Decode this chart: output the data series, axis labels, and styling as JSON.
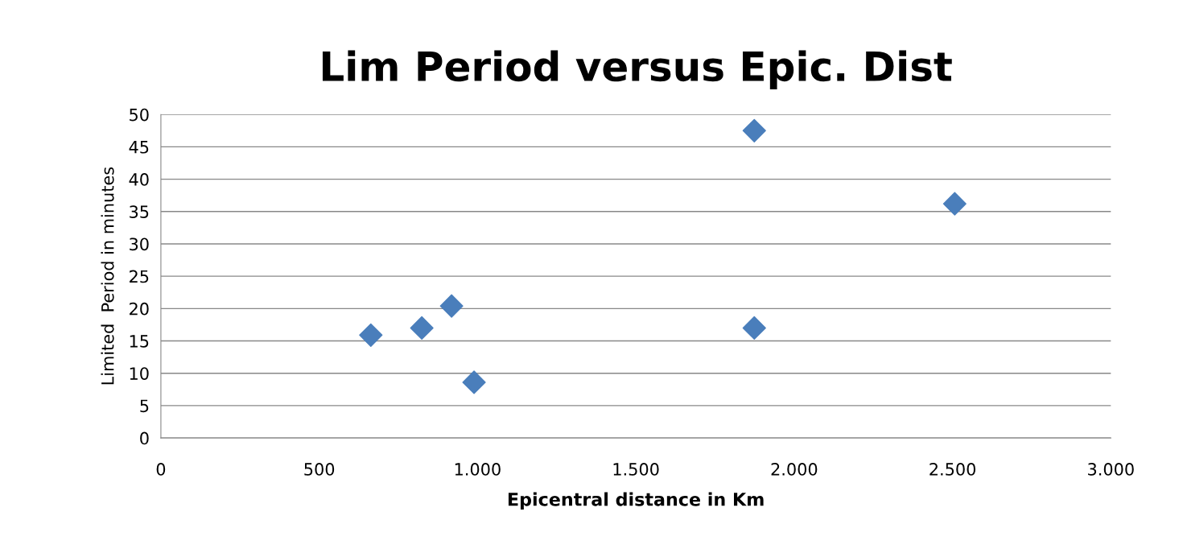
{
  "chart_data": {
    "type": "scatter",
    "title": "Lim Period versus Epic. Dist",
    "xlabel": "Epicentral distance in Km",
    "ylabel": "Limited  Period in minutes",
    "x": [
      663,
      824,
      918,
      989,
      1874,
      1874,
      2507
    ],
    "series": [
      {
        "color": "#4a7ebb",
        "values": [
          15.9,
          17.0,
          20.4,
          8.6,
          47.5,
          17.0,
          36.2
        ]
      }
    ],
    "xlim": [
      0,
      3000
    ],
    "xticks": [
      0,
      500,
      {
        "value": 1000,
        "label": "1.000"
      },
      {
        "value": 1500,
        "label": "1.500"
      },
      {
        "value": 2000,
        "label": "2.000"
      },
      {
        "value": 2500,
        "label": "2.500"
      },
      {
        "value": 3000,
        "label": "3.000"
      }
    ],
    "ylim": [
      0,
      50
    ],
    "yticks": [
      0,
      5,
      10,
      15,
      20,
      25,
      30,
      35,
      40,
      45,
      50
    ],
    "grid": "y",
    "marker": "diamond"
  }
}
